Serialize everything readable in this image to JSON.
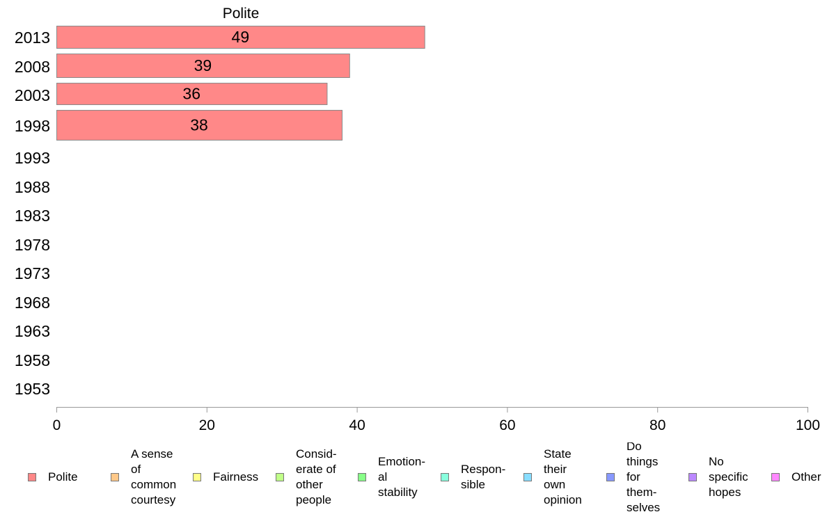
{
  "chart_data": {
    "type": "bar",
    "orientation": "horizontal",
    "title": "Polite",
    "categories": [
      "2013",
      "2008",
      "2003",
      "1998",
      "1993",
      "1988",
      "1983",
      "1978",
      "1973",
      "1968",
      "1963",
      "1958",
      "1953"
    ],
    "series": [
      {
        "name": "Polite",
        "color": "#ff8888",
        "values": [
          49,
          39,
          36,
          38,
          null,
          null,
          null,
          null,
          null,
          null,
          null,
          null,
          null
        ]
      }
    ],
    "xlim": [
      0,
      100
    ],
    "xticks": [
      0,
      20,
      40,
      60,
      80,
      100
    ],
    "grid": false,
    "legend_position": "bottom"
  },
  "legend": {
    "items": [
      {
        "label": "Polite",
        "color": "#ff8888"
      },
      {
        "label": "A sense\nof\ncommon\ncourtesy",
        "color": "#ffc888"
      },
      {
        "label": "Fairness",
        "color": "#ffff88"
      },
      {
        "label": "Consid-\nerate of\nother\npeople",
        "color": "#c0ff88"
      },
      {
        "label": "Emotion-\nal\nstability",
        "color": "#88ff88"
      },
      {
        "label": "Respon-\nsible",
        "color": "#88ffdd"
      },
      {
        "label": "State\ntheir\nown\nopinion",
        "color": "#88ddff"
      },
      {
        "label": "Do\nthings\nfor\nthem-\nselves",
        "color": "#8899ff"
      },
      {
        "label": "No\nspecific\nhopes",
        "color": "#bb88ff"
      },
      {
        "label": "Other",
        "color": "#ff88ff"
      }
    ]
  }
}
